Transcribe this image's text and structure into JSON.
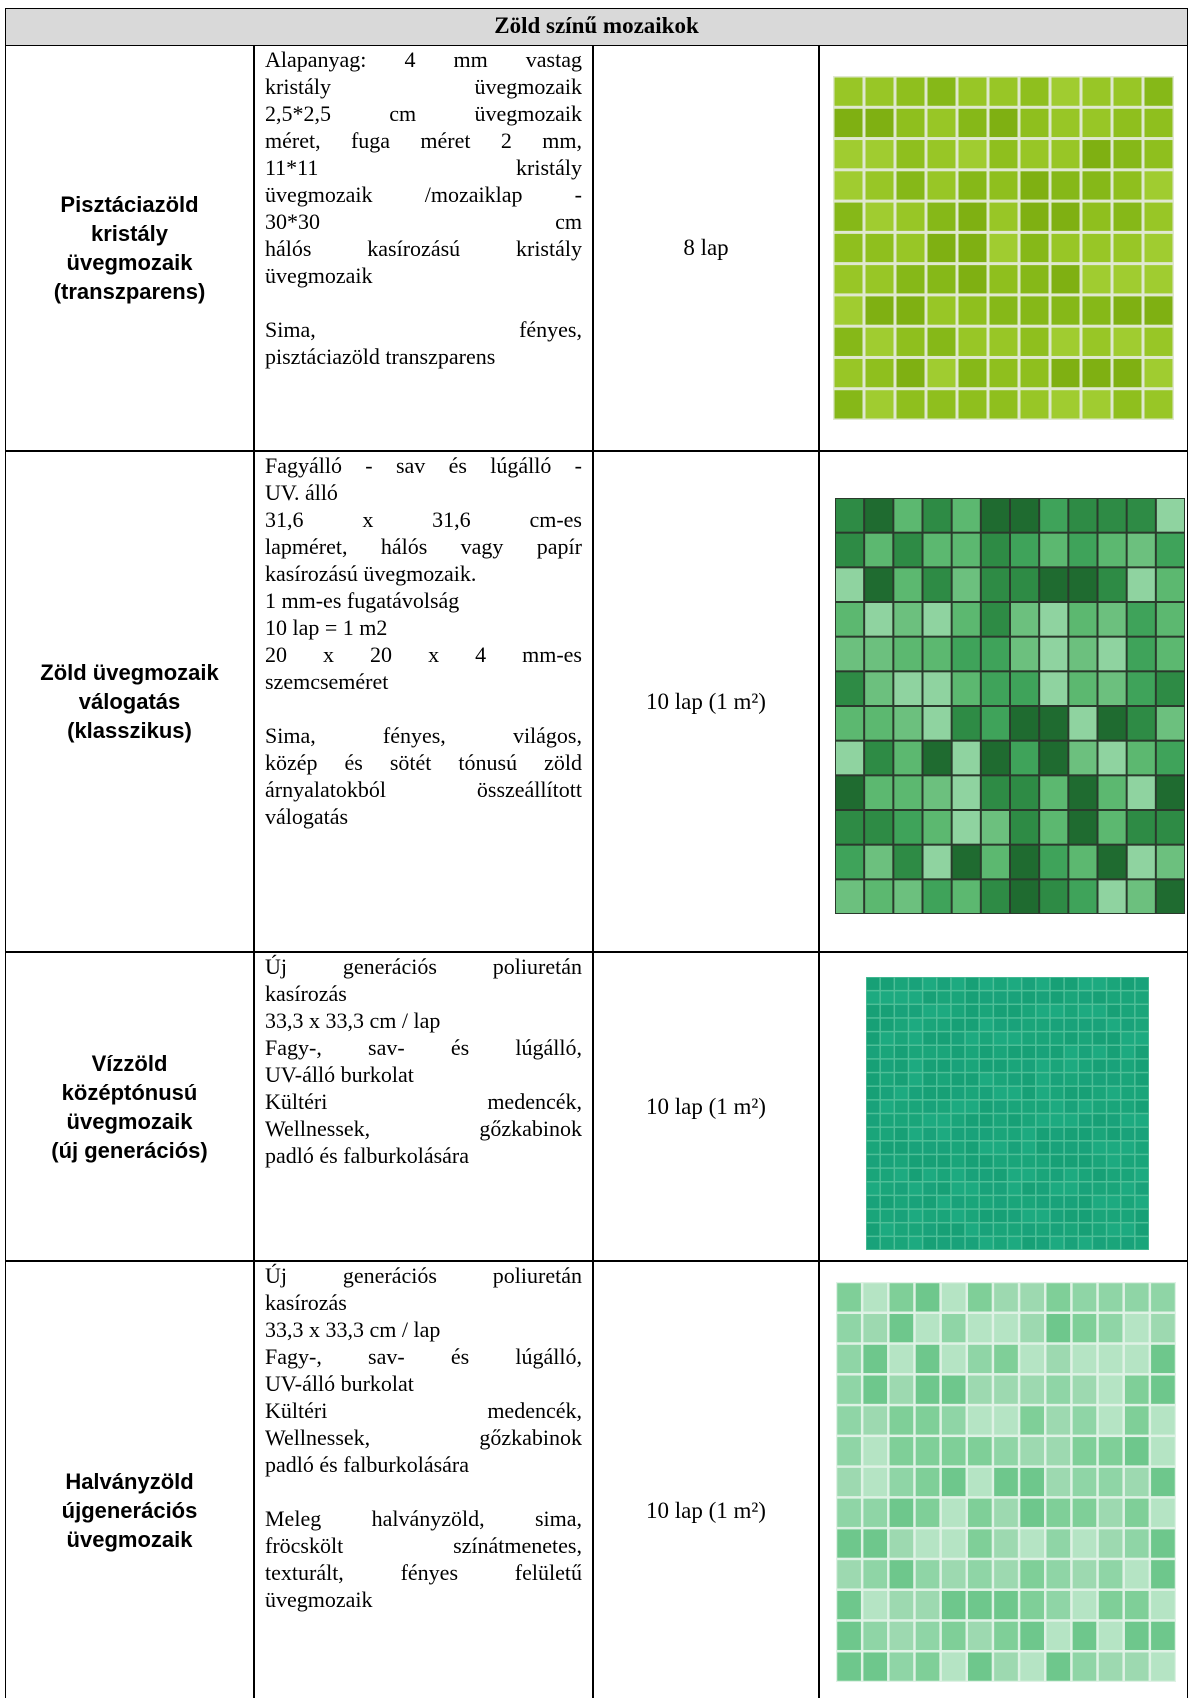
{
  "table": {
    "title": "Zöld színű mozaikok",
    "rows": [
      {
        "name": [
          "Pisztáciazöld",
          "kristály",
          "üvegmozaik",
          "(transzparens)"
        ],
        "description": [
          [
            [
              "Alapanyag: 4 mm vastag",
              "kristály üvegmozaik",
              "2,5*2,5 cm üvegmozaik",
              "méret, fuga méret 2 mm,",
              "11*11 kristály",
              "üvegmozaik /mozaiklap -",
              "30*30 cm",
              "hálós kasírozású kristály",
              "üvegmozaik"
            ]
          ],
          [
            [
              "Sima, fényes,",
              "pisztáciazöld transzparens"
            ]
          ]
        ],
        "quantity": "8 lap"
      },
      {
        "name": [
          "Zöld üvegmozaik",
          "válogatás",
          "(klasszikus)"
        ],
        "description": [
          [
            [
              "Fagyálló - sav és lúgálló -",
              "UV. álló"
            ],
            [
              "31,6 x 31,6 cm-es",
              "lapméret, hálós vagy papír",
              "kasírozású üvegmozaik."
            ],
            [
              "1 mm-es fugatávolság"
            ],
            [
              "10 lap = 1 m2"
            ],
            [
              "20 x 20 x 4 mm-es",
              "szemcseméret"
            ]
          ],
          [
            [
              "Sima, fényes, világos,",
              "közép és sötét tónusú zöld",
              "árnyalatokból összeállított",
              "válogatás"
            ]
          ]
        ],
        "quantity": "10 lap (1 m²)"
      },
      {
        "name": [
          "Vízzöld",
          "középtónusú",
          "üvegmozaik",
          "(új generációs)"
        ],
        "description": [
          [
            [
              "Új generációs poliuretán",
              "kasírozás"
            ],
            [
              "33,3 x 33,3 cm / lap"
            ],
            [
              "Fagy-, sav- és lúgálló,",
              "UV-álló burkolat"
            ],
            [
              "Kültéri medencék,",
              "Wellnessek, gőzkabinok",
              "padló és falburkolására"
            ]
          ]
        ],
        "quantity": "10 lap (1 m²)"
      },
      {
        "name": [
          "Halványzöld",
          "újgenerációs",
          "üvegmozaik"
        ],
        "description": [
          [
            [
              "Új generációs poliuretán",
              "kasírozás"
            ],
            [
              "33,3 x 33,3 cm / lap"
            ],
            [
              "Fagy-, sav- és lúgálló,",
              "UV-álló burkolat"
            ],
            [
              "Kültéri medencék,",
              "Wellnessek, gőzkabinok",
              "padló és falburkolására"
            ]
          ],
          [
            [
              "Meleg halványzöld, sima,",
              "fröcskölt színátmenetes,",
              "texturált, fényes felületű",
              "üvegmozaik"
            ]
          ]
        ],
        "quantity": "10 lap (1 m²)"
      }
    ]
  }
}
